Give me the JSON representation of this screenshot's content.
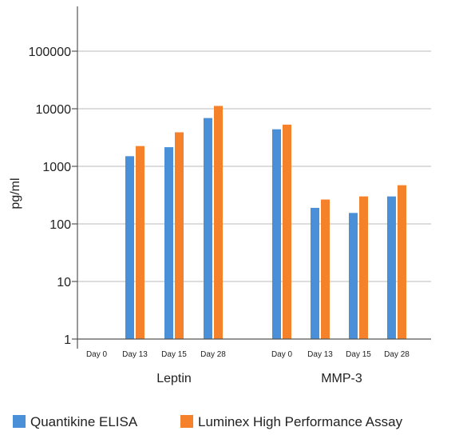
{
  "colors": {
    "quantikine": "#4a90d9",
    "luminex": "#f5822b"
  },
  "chart_data": {
    "type": "bar",
    "scale": "log",
    "ylabel": "pg/ml",
    "ylim": [
      1,
      1000000
    ],
    "yticks": [
      {
        "value": 1,
        "label": "1"
      },
      {
        "value": 10,
        "label": "10"
      },
      {
        "value": 100,
        "label": "100"
      },
      {
        "value": 1000,
        "label": "1000"
      },
      {
        "value": 10000,
        "label": "10000"
      },
      {
        "value": 100000,
        "label": "100000"
      }
    ],
    "groups": [
      {
        "name": "Leptin",
        "categories": [
          "Day 0",
          "Day 13",
          "Day 15",
          "Day 28"
        ]
      },
      {
        "name": "MMP-3",
        "categories": [
          "Day 0",
          "Day 13",
          "Day 15",
          "Day 28"
        ]
      }
    ],
    "series": [
      {
        "name": "Quantikine ELISA",
        "color": "#4a90d9",
        "values": [
          [
            null,
            1500,
            2150,
            6900
          ],
          [
            4400,
            190,
            155,
            300
          ]
        ]
      },
      {
        "name": "Luminex High Performance Assay",
        "color": "#f5822b",
        "values": [
          [
            null,
            2250,
            3900,
            11200
          ],
          [
            5300,
            265,
            300,
            470
          ]
        ]
      }
    ],
    "grid": true,
    "legend_position": "bottom"
  }
}
